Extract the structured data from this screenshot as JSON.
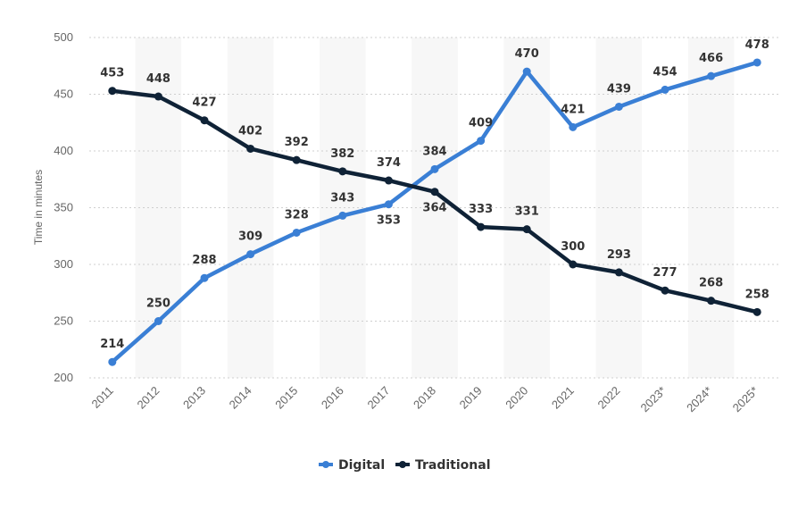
{
  "chart_data": {
    "type": "line",
    "title": "",
    "xlabel": "",
    "ylabel": "Time in minutes",
    "ylim": [
      200,
      500
    ],
    "yticks": [
      200,
      250,
      300,
      350,
      400,
      450,
      500
    ],
    "categories": [
      "2011",
      "2012",
      "2013",
      "2014",
      "2015",
      "2016",
      "2017",
      "2018",
      "2019",
      "2020",
      "2021",
      "2022",
      "2023*",
      "2024*",
      "2025*"
    ],
    "series": [
      {
        "name": "Digital",
        "color": "#3a7fd5",
        "values": [
          214,
          250,
          288,
          309,
          328,
          343,
          353,
          384,
          409,
          470,
          421,
          439,
          454,
          466,
          478
        ]
      },
      {
        "name": "Traditional",
        "color": "#0f2236",
        "values": [
          453,
          448,
          427,
          402,
          392,
          382,
          374,
          364,
          333,
          331,
          300,
          293,
          277,
          268,
          258
        ]
      }
    ],
    "grid": true,
    "alternating_bands": true,
    "legend_position": "bottom-center"
  }
}
